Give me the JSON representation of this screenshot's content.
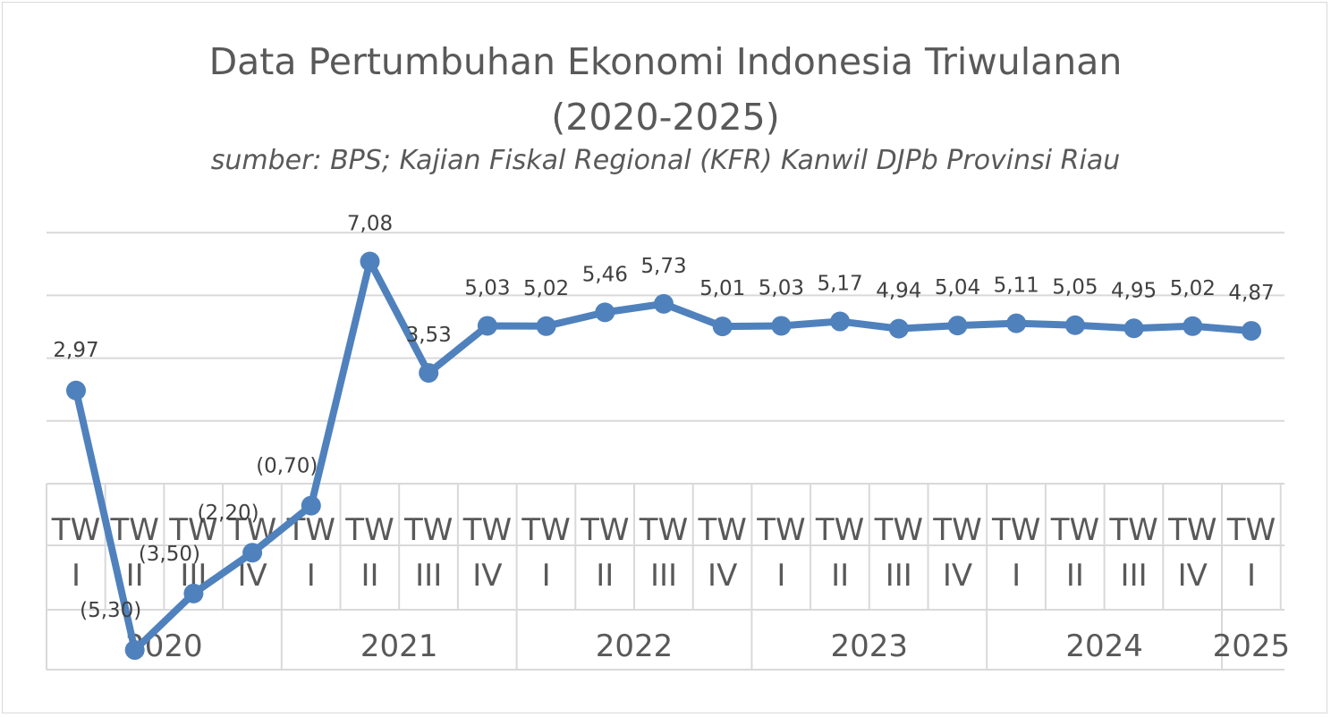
{
  "chart_data": {
    "type": "line",
    "title": "Data Pertumbuhan Ekonomi Indonesia Triwulanan",
    "title_line2": "(2020-2025)",
    "subtitle": "sumber: BPS; Kajian Fiskal Regional (KFR) Kanwil DJPb Provinsi Riau",
    "quarters": [
      "I",
      "II",
      "III",
      "IV",
      "I",
      "II",
      "III",
      "IV",
      "I",
      "II",
      "III",
      "IV",
      "I",
      "II",
      "III",
      "IV",
      "I",
      "II",
      "III",
      "IV",
      "I"
    ],
    "quarter_prefix": "TW",
    "years": [
      {
        "label": "2020",
        "count": 4
      },
      {
        "label": "2021",
        "count": 4
      },
      {
        "label": "2022",
        "count": 4
      },
      {
        "label": "2023",
        "count": 4
      },
      {
        "label": "2024",
        "count": 4
      },
      {
        "label": "2025",
        "count": 1
      }
    ],
    "values": [
      2.97,
      -5.3,
      -3.5,
      -2.2,
      -0.7,
      7.08,
      3.53,
      5.03,
      5.02,
      5.46,
      5.73,
      5.01,
      5.03,
      5.17,
      4.94,
      5.04,
      5.11,
      5.05,
      4.95,
      5.02,
      4.87
    ],
    "data_labels": [
      "2,97",
      "(5,30)",
      "(3,50)",
      "(2,20)",
      "(0,70)",
      "7,08",
      "3,53",
      "5,03",
      "5,02",
      "5,46",
      "5,73",
      "5,01",
      "5,03",
      "5,17",
      "4,94",
      "5,04",
      "5,11",
      "5,05",
      "4,95",
      "5,02",
      "4,87"
    ],
    "ylim": [
      -6,
      8
    ],
    "grid": true,
    "line_color": "#4f81bd"
  }
}
